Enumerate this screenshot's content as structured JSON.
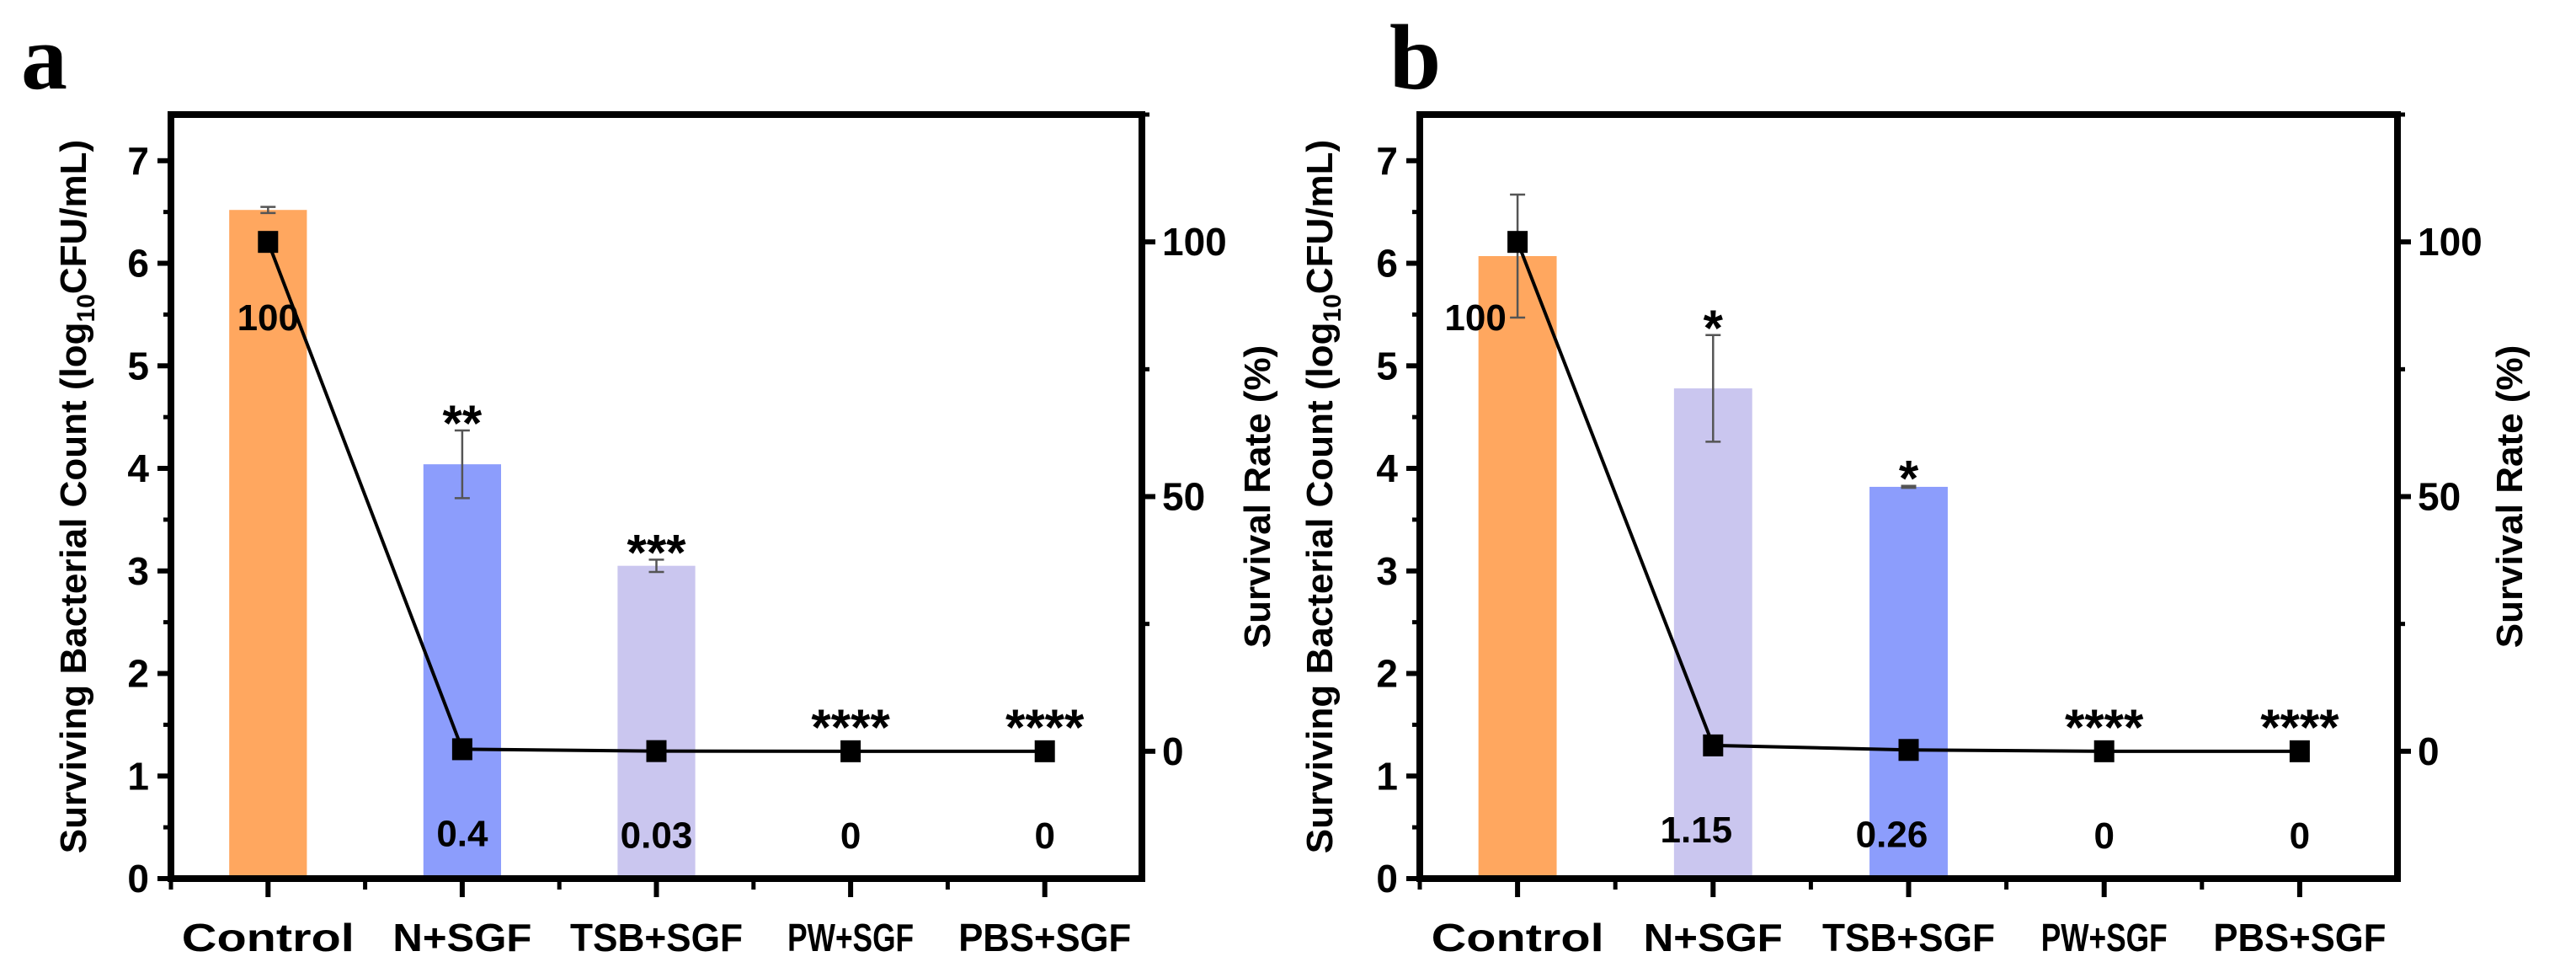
{
  "chart_data": [
    {
      "panel_label": "a",
      "type": "bar",
      "categories": [
        "Control",
        "N+SGF",
        "TSB+SGF",
        "PW+SGF",
        "PBS+SGF"
      ],
      "ylabel": "Surviving Bacterial Count  (log",
      "ylabel_sub": "10",
      "ylabel_end": "CFU/mL)",
      "y2label": "Survival Rate (%)",
      "ylim": [
        0,
        7.45
      ],
      "yticks": [
        "0",
        "1",
        "2",
        "3",
        "4",
        "5",
        "6",
        "7"
      ],
      "y2lim": [
        -25,
        125
      ],
      "y2ticks": [
        "0",
        "50",
        "100"
      ],
      "bars": {
        "values": [
          6.52,
          4.04,
          3.05,
          0,
          0
        ],
        "errors": [
          0.03,
          0.33,
          0.06,
          0,
          0
        ],
        "colors": [
          "#FFA75F",
          "#8C9DFC",
          "#CAC6EF",
          "#CAC6EF",
          "#CAC6EF"
        ]
      },
      "significance": [
        "",
        "**",
        "***",
        "****",
        "****"
      ],
      "line": {
        "name": "Survival Rate (%)",
        "values": [
          100,
          0.4,
          0.03,
          0,
          0
        ],
        "labels": [
          "100",
          "0.4",
          "0.03",
          "0",
          "0"
        ],
        "color": "#000000"
      }
    },
    {
      "panel_label": "b",
      "type": "bar",
      "categories": [
        "Control",
        "N+SGF",
        "TSB+SGF",
        "PW+SGF",
        "PBS+SGF"
      ],
      "ylabel": "Surviving Bacterial Count (log",
      "ylabel_sub": "10",
      "ylabel_end": "CFU/mL)",
      "y2label": "Survival Rate (%)",
      "ylim": [
        0,
        7.45
      ],
      "yticks": [
        "0",
        "1",
        "2",
        "3",
        "4",
        "5",
        "6",
        "7"
      ],
      "y2lim": [
        -25,
        125
      ],
      "y2ticks": [
        "0",
        "50",
        "100"
      ],
      "bars": {
        "values": [
          6.07,
          4.78,
          3.82,
          0,
          0
        ],
        "errors": [
          0.6,
          0.52,
          0.01,
          0,
          0
        ],
        "colors": [
          "#FFA75F",
          "#CAC6EF",
          "#8C9DFC",
          "#8C9DFC",
          "#8C9DFC"
        ]
      },
      "significance": [
        "",
        "*",
        "*",
        "****",
        "****"
      ],
      "line": {
        "name": "Survival Rate (%)",
        "values": [
          100,
          1.15,
          0.26,
          0,
          0
        ],
        "labels": [
          "100",
          "1.15",
          "0.26",
          "0",
          "0"
        ],
        "color": "#000000"
      }
    }
  ]
}
